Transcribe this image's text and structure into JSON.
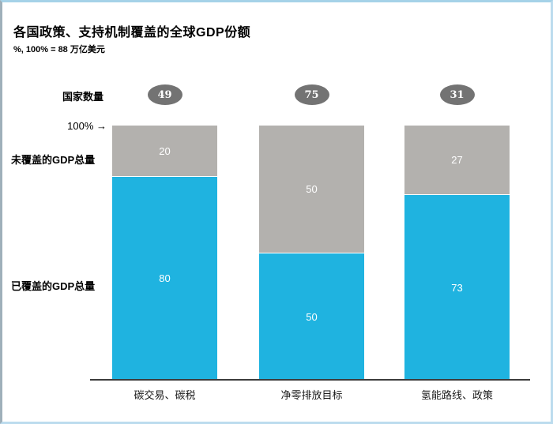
{
  "chart_data": {
    "type": "bar",
    "stacked": true,
    "title": "各国政策、支持机制覆盖的全球GDP份额",
    "subtitle": "%, 100% = 88 万亿美元",
    "categories": [
      "碳交易、碳税",
      "净零排放目标",
      "氢能路线、政策"
    ],
    "series": [
      {
        "name": "未覆盖的GDP总量",
        "values": [
          20,
          50,
          27
        ],
        "color": "#b3b1ae"
      },
      {
        "name": "已覆盖的GDP总量",
        "values": [
          80,
          50,
          73
        ],
        "color": "#1fb3e0"
      }
    ],
    "country_counts": {
      "label": "国家数量",
      "values": [
        49,
        75,
        31
      ],
      "badge_color": "#737373"
    },
    "axis": {
      "top_marker": "100%",
      "ylim": [
        0,
        100
      ],
      "grid": false
    },
    "legend_position": "left-row-labels"
  },
  "icons": {
    "right_arrow": "→"
  }
}
